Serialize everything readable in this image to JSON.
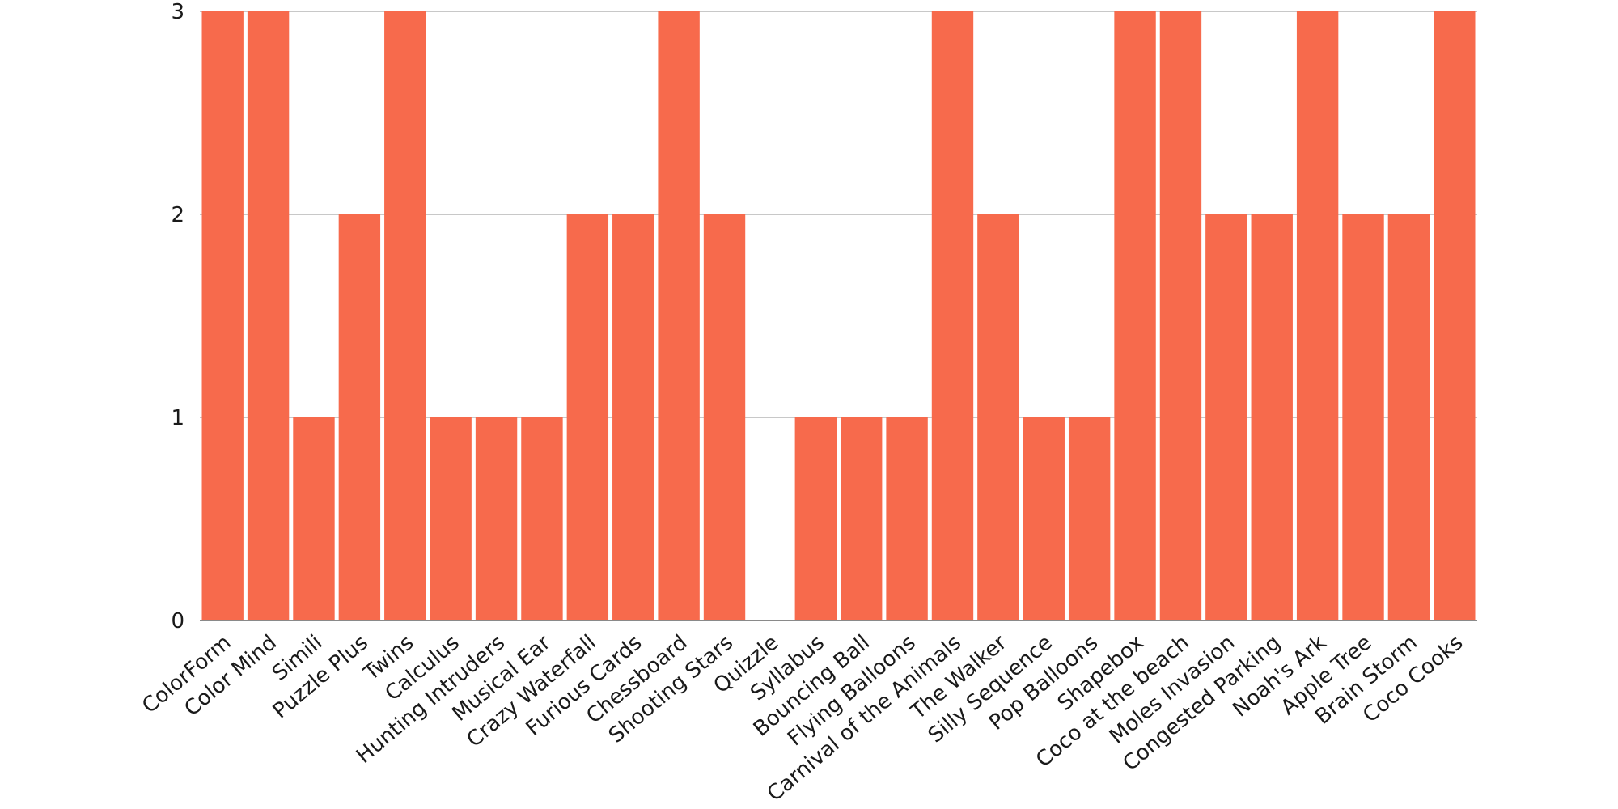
{
  "chart_data": {
    "type": "bar",
    "title": "",
    "xlabel": "",
    "ylabel": "",
    "ylim": [
      0,
      3
    ],
    "yticks": [
      0,
      1,
      2,
      3
    ],
    "grid": true,
    "legend": "none",
    "bar_color": "#f76a4c",
    "categories": [
      "ColorForm",
      "Color Mind",
      "Simili",
      "Puzzle Plus",
      "Twins",
      "Calculus",
      "Hunting Intruders",
      "Musical Ear",
      "Crazy Waterfall",
      "Furious Cards",
      "Chessboard",
      "Shooting Stars",
      "Quizzle",
      "Syllabus",
      "Bouncing Ball",
      "Flying Balloons",
      "Carnival of the Animals",
      "The Walker",
      "Silly Sequence",
      "Pop Balloons",
      "Shapebox",
      "Coco at the beach",
      "Moles Invasion",
      "Congested Parking",
      "Noah's Ark",
      "Apple Tree",
      "Brain Storm",
      "Coco Cooks"
    ],
    "values": [
      3,
      3,
      1,
      2,
      3,
      1,
      1,
      1,
      2,
      2,
      3,
      2,
      0,
      1,
      1,
      1,
      3,
      2,
      1,
      1,
      3,
      3,
      2,
      2,
      3,
      2,
      2,
      3
    ]
  }
}
